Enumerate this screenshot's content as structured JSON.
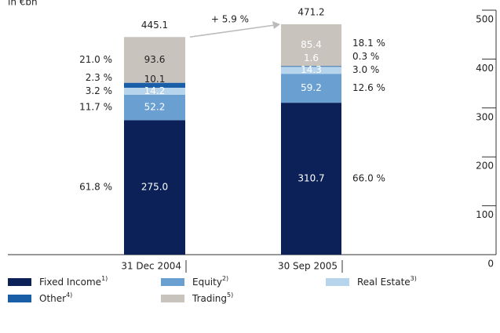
{
  "chart_data": {
    "type": "stacked-bar",
    "subtitle": "in €bn",
    "categories": [
      "31 Dec 2004",
      "30 Sep 2005"
    ],
    "series": [
      {
        "name": "Fixed Income",
        "footnote": "1)",
        "color": "#0b2157",
        "values": [
          275.0,
          310.7
        ],
        "value_labels": [
          "275.0",
          "310.7"
        ],
        "shares": [
          61.8,
          66.0
        ],
        "share_labels": [
          "61.8 %",
          "66.0 %"
        ]
      },
      {
        "name": "Equity",
        "footnote": "2)",
        "color": "#6a9fd1",
        "values": [
          52.2,
          59.2
        ],
        "value_labels": [
          "52.2",
          "59.2"
        ],
        "shares": [
          11.7,
          12.6
        ],
        "share_labels": [
          "11.7 %",
          "12.6 %"
        ]
      },
      {
        "name": "Real Estate",
        "footnote": "3)",
        "color": "#b6d4ec",
        "values": [
          14.2,
          14.3
        ],
        "value_labels": [
          "14.2",
          "14.3"
        ],
        "shares": [
          3.2,
          3.0
        ],
        "share_labels": [
          "3.2 %",
          "3.0 %"
        ]
      },
      {
        "name": "Other",
        "footnote": "4)",
        "color": "#1a5ea8",
        "values": [
          10.1,
          1.6
        ],
        "value_labels": [
          "10.1",
          "1.6"
        ],
        "shares": [
          2.3,
          0.3
        ],
        "share_labels": [
          "2.3 %",
          "0.3 %"
        ]
      },
      {
        "name": "Trading",
        "footnote": "5)",
        "color": "#c9c3be",
        "values": [
          93.6,
          85.4
        ],
        "value_labels": [
          "93.6",
          "85.4"
        ],
        "shares": [
          21.0,
          18.1
        ],
        "share_labels": [
          "21.0 %",
          "18.1 %"
        ]
      }
    ],
    "totals": [
      445.1,
      471.2
    ],
    "annotation": "+ 5.9 %",
    "ylim": [
      0,
      500
    ],
    "yticks": [
      0,
      100,
      200,
      300,
      400,
      500
    ]
  }
}
